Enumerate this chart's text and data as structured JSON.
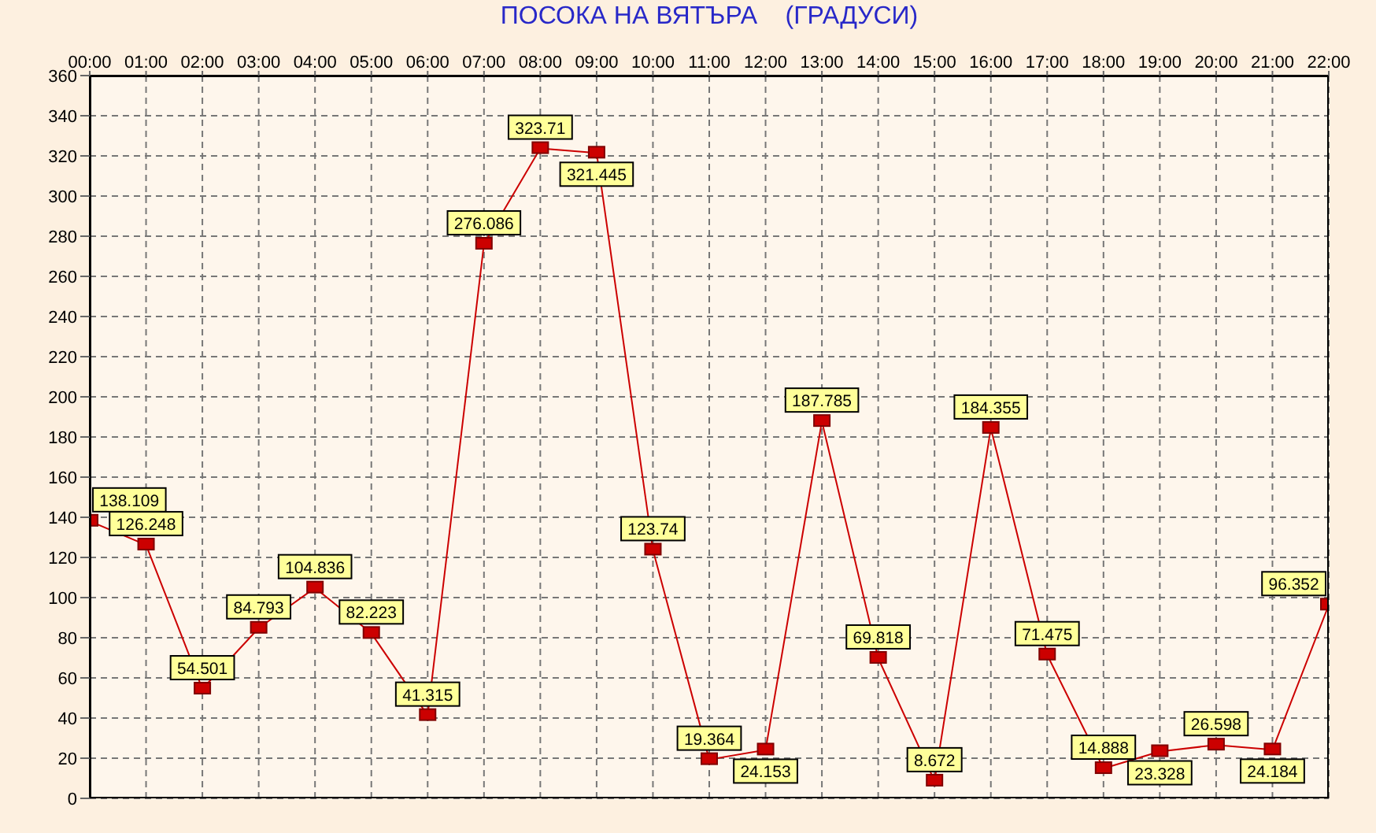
{
  "chart_data": {
    "type": "line",
    "title": "ПОСОКА НА ВЯТЪРА    (ГРАДУСИ)",
    "categories": [
      "00:00",
      "01:00",
      "02:00",
      "03:00",
      "04:00",
      "05:00",
      "06:00",
      "07:00",
      "08:00",
      "09:00",
      "10:00",
      "11:00",
      "12:00",
      "13:00",
      "14:00",
      "15:00",
      "16:00",
      "17:00",
      "18:00",
      "19:00",
      "20:00",
      "21:00",
      "22:00"
    ],
    "series": [
      {
        "color": "#cc0000",
        "values": [
          138.109,
          126.248,
          54.501,
          84.793,
          104.836,
          82.223,
          41.315,
          276.086,
          323.71,
          321.445,
          123.74,
          19.364,
          24.153,
          187.785,
          69.818,
          8.672,
          184.355,
          71.475,
          14.888,
          23.328,
          26.598,
          24.184,
          96.352
        ]
      }
    ],
    "ylim": [
      0,
      360
    ],
    "yticks": [
      0,
      20,
      40,
      60,
      80,
      100,
      120,
      140,
      160,
      180,
      200,
      220,
      240,
      260,
      280,
      300,
      320,
      340,
      360
    ],
    "grid": true,
    "data_labels": true,
    "marker": "square",
    "line_style": "solid"
  }
}
